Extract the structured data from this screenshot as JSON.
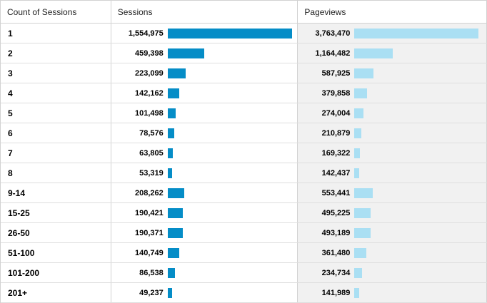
{
  "table": {
    "headers": [
      "Count of Sessions",
      "Sessions",
      "Pageviews"
    ],
    "colors": {
      "sessions_bar": "#058dc7",
      "pageviews_bar": "#aadff3"
    },
    "rows": [
      {
        "label": "1",
        "sessions": "1,554,975",
        "sessions_value": 1554975,
        "pageviews": "3,763,470",
        "pageviews_value": 3763470
      },
      {
        "label": "2",
        "sessions": "459,398",
        "sessions_value": 459398,
        "pageviews": "1,164,482",
        "pageviews_value": 1164482
      },
      {
        "label": "3",
        "sessions": "223,099",
        "sessions_value": 223099,
        "pageviews": "587,925",
        "pageviews_value": 587925
      },
      {
        "label": "4",
        "sessions": "142,162",
        "sessions_value": 142162,
        "pageviews": "379,858",
        "pageviews_value": 379858
      },
      {
        "label": "5",
        "sessions": "101,498",
        "sessions_value": 101498,
        "pageviews": "274,004",
        "pageviews_value": 274004
      },
      {
        "label": "6",
        "sessions": "78,576",
        "sessions_value": 78576,
        "pageviews": "210,879",
        "pageviews_value": 210879
      },
      {
        "label": "7",
        "sessions": "63,805",
        "sessions_value": 63805,
        "pageviews": "169,322",
        "pageviews_value": 169322
      },
      {
        "label": "8",
        "sessions": "53,319",
        "sessions_value": 53319,
        "pageviews": "142,437",
        "pageviews_value": 142437
      },
      {
        "label": "9-14",
        "sessions": "208,262",
        "sessions_value": 208262,
        "pageviews": "553,441",
        "pageviews_value": 553441
      },
      {
        "label": "15-25",
        "sessions": "190,421",
        "sessions_value": 190421,
        "pageviews": "495,225",
        "pageviews_value": 495225
      },
      {
        "label": "26-50",
        "sessions": "190,371",
        "sessions_value": 190371,
        "pageviews": "493,189",
        "pageviews_value": 493189
      },
      {
        "label": "51-100",
        "sessions": "140,749",
        "sessions_value": 140749,
        "pageviews": "361,480",
        "pageviews_value": 361480
      },
      {
        "label": "101-200",
        "sessions": "86,538",
        "sessions_value": 86538,
        "pageviews": "234,734",
        "pageviews_value": 234734
      },
      {
        "label": "201+",
        "sessions": "49,237",
        "sessions_value": 49237,
        "pageviews": "141,989",
        "pageviews_value": 141989
      }
    ]
  }
}
